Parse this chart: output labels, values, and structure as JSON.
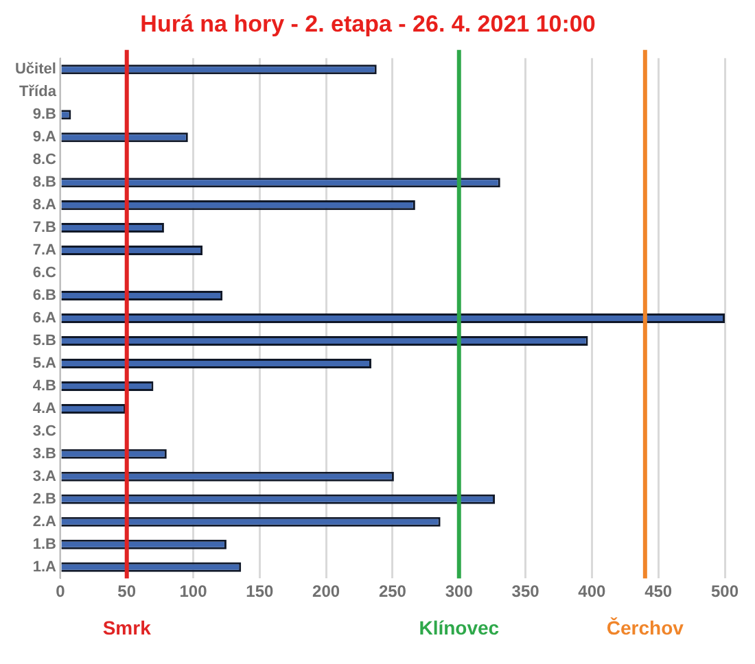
{
  "chart_data": {
    "type": "bar",
    "orientation": "horizontal",
    "title": "Hurá na hory - 2. etapa - 26. 4. 2021 10:00",
    "categories": [
      "Učitel",
      "Třída",
      "9.B",
      "9.A",
      "8.C",
      "8.B",
      "8.A",
      "7.B",
      "7.A",
      "6.C",
      "6.B",
      "6.A",
      "5.B",
      "5.A",
      "4.B",
      "4.A",
      "3.C",
      "3.B",
      "3.A",
      "2.B",
      "2.A",
      "1.B",
      "1.A"
    ],
    "values": [
      238,
      null,
      8,
      96,
      null,
      331,
      267,
      78,
      107,
      null,
      122,
      500,
      397,
      234,
      70,
      49,
      null,
      80,
      251,
      327,
      286,
      125,
      136
    ],
    "color": "#4068b0",
    "xlim": [
      0,
      500
    ],
    "xticks": [
      0,
      50,
      100,
      150,
      200,
      250,
      300,
      350,
      400,
      450,
      500
    ],
    "grid": "x",
    "ref_lines": [
      {
        "axis": "x",
        "value": 50,
        "label": "Smrk",
        "color": "#e02424"
      },
      {
        "axis": "x",
        "value": 300,
        "label": "Klínovec",
        "color": "#2ea84a"
      },
      {
        "axis": "x",
        "value": 440,
        "label": "Čerchov",
        "color": "#f0852a"
      }
    ]
  }
}
